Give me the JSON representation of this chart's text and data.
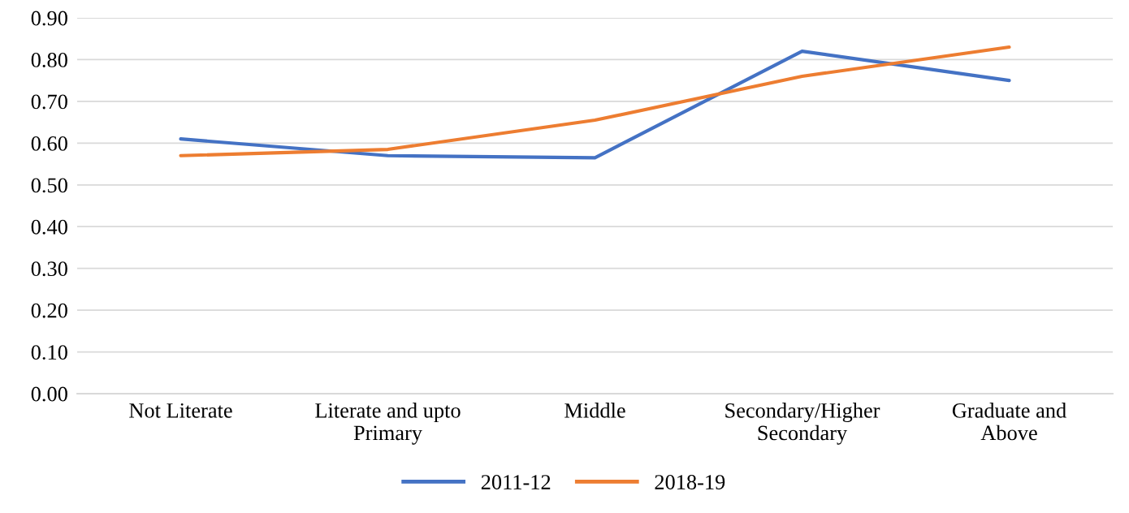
{
  "chart_data": {
    "type": "line",
    "categories": [
      "Not Literate",
      "Literate and upto\nPrimary",
      "Middle",
      "Secondary/Higher\nSecondary",
      "Graduate and\nAbove"
    ],
    "series": [
      {
        "name": "2011-12",
        "color": "#4472c4",
        "values": [
          0.61,
          0.57,
          0.565,
          0.82,
          0.75
        ]
      },
      {
        "name": "2018-19",
        "color": "#ed7d31",
        "values": [
          0.57,
          0.585,
          0.655,
          0.76,
          0.83
        ]
      }
    ],
    "ylim": [
      0,
      0.9
    ],
    "yticks": [
      {
        "value": 0,
        "label": "0.00"
      },
      {
        "value": 0.1,
        "label": "0.10"
      },
      {
        "value": 0.2,
        "label": "0.20"
      },
      {
        "value": 0.3,
        "label": "0.30"
      },
      {
        "value": 0.4,
        "label": "0.40"
      },
      {
        "value": 0.5,
        "label": "0.50"
      },
      {
        "value": 0.6,
        "label": "0.60"
      },
      {
        "value": 0.7,
        "label": "0.70"
      },
      {
        "value": 0.8,
        "label": "0.80"
      },
      {
        "value": 0.9,
        "label": "0.90"
      }
    ],
    "grid": "y",
    "legend": "bottom",
    "marker": "none",
    "line_style": "solid"
  }
}
